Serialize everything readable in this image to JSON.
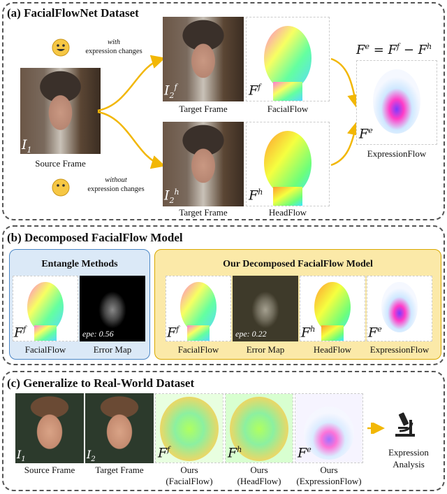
{
  "panel_a": {
    "title": "(a) FacialFlowNet Dataset",
    "with_label_1": "with",
    "with_label_2": "expression changes",
    "without_label_1": "without",
    "without_label_2": "expression changes",
    "source_caption": "Source Frame",
    "target_caption_top": "Target Frame",
    "facialflow_caption": "FacialFlow",
    "target_caption_bottom": "Target Frame",
    "headflow_caption": "HeadFlow",
    "expressionflow_caption": "ExpressionFlow",
    "equation": "F^e = F^f − F^h"
  },
  "panel_b": {
    "title": "(b) Decomposed FacialFlow Model",
    "left_box_title": "Entangle Methods",
    "right_box_title": "Our Decomposed FacialFlow Model",
    "left_captions": [
      "FacialFlow",
      "Error Map"
    ],
    "right_captions": [
      "FacialFlow",
      "Error Map",
      "HeadFlow",
      "ExpressionFlow"
    ],
    "epe_left": "epe: 0.56",
    "epe_right": "epe: 0.22"
  },
  "panel_c": {
    "title": "(c) Generalize to Real-World Dataset",
    "source_caption": "Source Frame",
    "target_caption": "Target Frame",
    "ours_1": [
      "Ours",
      "(FacialFlow)"
    ],
    "ours_2": [
      "Ours",
      "(HeadFlow)"
    ],
    "ours_3": [
      "Ours",
      "(ExpressionFlow)"
    ],
    "analysis": [
      "Expression",
      "Analysis"
    ]
  },
  "colors": {
    "arrow": "#f2b705",
    "left_box_bg": "#dbe9f7",
    "left_box_border": "#4a86c5",
    "right_box_bg": "#fbe9a8",
    "right_box_border": "#d9a800"
  }
}
